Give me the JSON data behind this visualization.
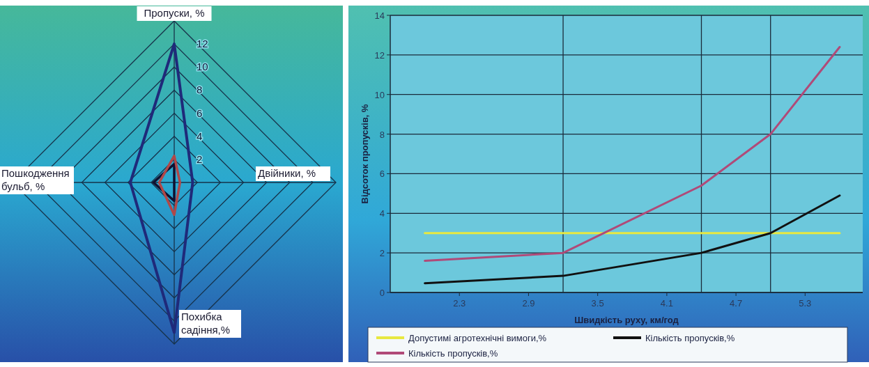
{
  "chart_data": [
    {
      "type": "radar",
      "categories": [
        "Пропуски, %",
        "Двійники, %",
        "Похибка садіння,%",
        "Пошкодження бульб, %"
      ],
      "ylim": [
        0,
        14
      ],
      "yticks": [
        2,
        4,
        6,
        8,
        10,
        12
      ],
      "grid": true,
      "series": [
        {
          "color": "#1f2a7a",
          "values": [
            12,
            1.6,
            13,
            3.8
          ]
        },
        {
          "color": "#101030",
          "values": [
            1.6,
            0,
            1.6,
            1.8
          ]
        },
        {
          "color": "#b04848",
          "values": [
            2.3,
            0.5,
            2.8,
            1.3
          ]
        }
      ]
    },
    {
      "type": "line",
      "x": [
        2.0,
        3.2,
        4.4,
        5.0,
        5.6
      ],
      "xlim": [
        1.7,
        5.8
      ],
      "xticks": [
        2.3,
        2.9,
        3.5,
        4.1,
        4.7,
        5.3
      ],
      "ylim": [
        0,
        14
      ],
      "yticks": [
        0,
        2,
        4,
        6,
        8,
        10,
        12,
        14
      ],
      "grid": "y",
      "legend": "bottom",
      "xlabel": "Швидкість руху, км/год",
      "ylabel": "Відсоток пропусків, %",
      "ref_lines": [
        {
          "axis": "x",
          "value": 3.2,
          "color": "#1a2a3a"
        },
        {
          "axis": "x",
          "value": 4.4,
          "color": "#1a2a3a"
        },
        {
          "axis": "x",
          "value": 5.0,
          "color": "#1a2a3a"
        }
      ],
      "series": [
        {
          "name": "Допустимі агротехнічні вимоги,%",
          "color": "#e8e840",
          "values": [
            3,
            3,
            3,
            3,
            3
          ]
        },
        {
          "name": "Кількість пропусків,%",
          "color": "#111111",
          "values": [
            0.47,
            0.84,
            2.0,
            3.0,
            4.9
          ]
        },
        {
          "name": "Кількість пропусків,%",
          "color": "#b04a78",
          "values": [
            1.6,
            2.0,
            5.4,
            8.0,
            12.4
          ]
        }
      ]
    }
  ]
}
